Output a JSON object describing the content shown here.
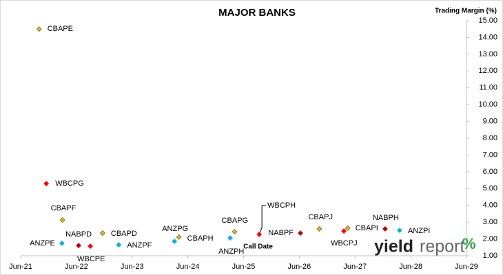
{
  "chart_data": {
    "type": "scatter",
    "title": "MAJOR BANKS",
    "y_axis_label": "Trading Margin  (%)",
    "annotation": "Call Date",
    "logo": {
      "part1": "yield",
      "part2": "report",
      "part3": "%"
    },
    "points": [
      {
        "label": "CBAPE",
        "x": 2021.83,
        "y": 14.5,
        "color": "#e6b422"
      },
      {
        "label": "WBCPG",
        "x": 2021.96,
        "y": 5.3,
        "color": "#ff0000"
      },
      {
        "label": "CBAPF",
        "x": 2022.25,
        "y": 3.13,
        "color": "#e6b422"
      },
      {
        "label": "ANZPE",
        "x": 2022.24,
        "y": 1.74,
        "color": "#00b0f0"
      },
      {
        "label": "NABPD",
        "x": 2022.54,
        "y": 1.61,
        "color": "#c00000"
      },
      {
        "label": "WBCPE",
        "x": 2022.75,
        "y": 1.57,
        "color": "#ff0000"
      },
      {
        "label": "CBAPD",
        "x": 2022.97,
        "y": 2.35,
        "color": "#e6b422"
      },
      {
        "label": "ANZPF",
        "x": 2023.26,
        "y": 1.65,
        "color": "#00b0f0"
      },
      {
        "label": "ANZPG",
        "x": 2024.26,
        "y": 1.86,
        "color": "#00b0f0"
      },
      {
        "label": "CBAPH",
        "x": 2024.34,
        "y": 2.11,
        "color": "#e6b422"
      },
      {
        "label": "ANZPH",
        "x": 2025.26,
        "y": 2.06,
        "color": "#00b0f0"
      },
      {
        "label": "CBAPG",
        "x": 2025.34,
        "y": 2.43,
        "color": "#e6b422"
      },
      {
        "label": "WBCPH",
        "x": 2025.78,
        "y": 2.27,
        "color": "#ff0000"
      },
      {
        "label": "NABPF",
        "x": 2026.52,
        "y": 2.35,
        "color": "#c00000"
      },
      {
        "label": "CBAPJ",
        "x": 2026.86,
        "y": 2.6,
        "color": "#e6b422"
      },
      {
        "label": "WBCPJ",
        "x": 2027.3,
        "y": 2.47,
        "color": "#ff0000"
      },
      {
        "label": "CBAPI",
        "x": 2027.37,
        "y": 2.64,
        "color": "#e6b422"
      },
      {
        "label": "NABPH",
        "x": 2028.04,
        "y": 2.6,
        "color": "#c00000"
      },
      {
        "label": "ANZPI",
        "x": 2028.3,
        "y": 2.51,
        "color": "#00b0f0"
      }
    ],
    "xlim": [
      2021.5,
      2029.5
    ],
    "xticks": [
      {
        "value": 2021.5,
        "label": "Jun-21"
      },
      {
        "value": 2022.5,
        "label": "Jun-22"
      },
      {
        "value": 2023.5,
        "label": "Jun-23"
      },
      {
        "value": 2024.5,
        "label": "Jun-24"
      },
      {
        "value": 2025.5,
        "label": "Jun-25"
      },
      {
        "value": 2026.5,
        "label": "Jun-26"
      },
      {
        "value": 2027.5,
        "label": "Jun-27"
      },
      {
        "value": 2028.5,
        "label": "Jun-28"
      },
      {
        "value": 2029.5,
        "label": "Jun-29"
      }
    ],
    "ylim": [
      1,
      15
    ],
    "yticks": [
      {
        "value": 1,
        "label": "1.00"
      },
      {
        "value": 2,
        "label": "2.00"
      },
      {
        "value": 3,
        "label": "3.00"
      },
      {
        "value": 4,
        "label": "4.00"
      },
      {
        "value": 5,
        "label": "5.00"
      },
      {
        "value": 6,
        "label": "6.00"
      },
      {
        "value": 7,
        "label": "7.00"
      },
      {
        "value": 8,
        "label": "8.00"
      },
      {
        "value": 9,
        "label": "9.00"
      },
      {
        "value": 10,
        "label": "10.00"
      },
      {
        "value": 11,
        "label": "11.00"
      },
      {
        "value": 12,
        "label": "12.00"
      },
      {
        "value": 13,
        "label": "13.00"
      },
      {
        "value": 14,
        "label": "14.00"
      },
      {
        "value": 15,
        "label": "15.00"
      }
    ]
  }
}
